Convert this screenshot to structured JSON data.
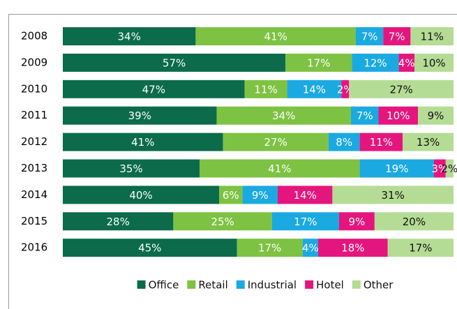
{
  "chart_data": {
    "type": "stacked-bar-horizontal",
    "categories": [
      "2008",
      "2009",
      "2010",
      "2011",
      "2012",
      "2013",
      "2014",
      "2015",
      "2016"
    ],
    "series": [
      {
        "name": "Office",
        "color": "#0b6b4b",
        "values": [
          34,
          57,
          47,
          39,
          41,
          35,
          40,
          28,
          45
        ],
        "value_labels": [
          "34%",
          "57%",
          "47%",
          "39%",
          "41%",
          "35%",
          "40%",
          "28%",
          "45%"
        ],
        "label_color": "#ffffff"
      },
      {
        "name": "Retail",
        "color": "#7dc242",
        "values": [
          41,
          17,
          11,
          34,
          27,
          41,
          6,
          25,
          17
        ],
        "value_labels": [
          "41%",
          "17%",
          "11%",
          "34%",
          "27%",
          "41%",
          "6%",
          "25%",
          "17%"
        ],
        "label_color": "#ffffff"
      },
      {
        "name": "Industrial",
        "color": "#1ba9e1",
        "values": [
          7,
          12,
          14,
          7,
          8,
          19,
          9,
          17,
          4
        ],
        "value_labels": [
          "7%",
          "12%",
          "14%",
          "7%",
          "8%",
          "19%",
          "9%",
          "17%",
          "4%"
        ],
        "label_color": "#ffffff"
      },
      {
        "name": "Hotel",
        "color": "#e5157e",
        "values": [
          7,
          4,
          2,
          10,
          11,
          3,
          14,
          9,
          18
        ],
        "value_labels": [
          "7%",
          "4%",
          "2%",
          "10%",
          "11%",
          "3%",
          "14%",
          "9%",
          "18%"
        ],
        "label_color": "#ffffff"
      },
      {
        "name": "Other",
        "color": "#b5dc95",
        "values": [
          11,
          10,
          27,
          9,
          13,
          2,
          31,
          20,
          17
        ],
        "value_labels": [
          "11%",
          "10%",
          "27%",
          "9%",
          "13%",
          "2%",
          "31%",
          "20%",
          "17%"
        ],
        "label_color": "#111111"
      }
    ],
    "legend": "bottom"
  }
}
